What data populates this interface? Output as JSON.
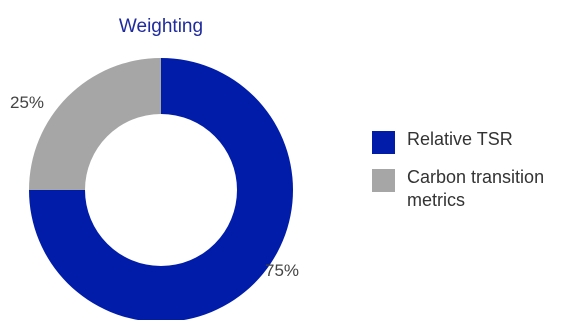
{
  "chart_data": {
    "type": "pie",
    "title": "Weighting",
    "slices": [
      {
        "label": "Relative TSR",
        "value": 75,
        "display": "75%",
        "color": "#001ca8"
      },
      {
        "label": "Carbon transition metrics",
        "value": 25,
        "display": "25%",
        "color": "#a6a6a6"
      }
    ],
    "donut": true,
    "legend_position": "right"
  },
  "legend": {
    "items": [
      {
        "label": "Relative TSR",
        "color": "#001ca8"
      },
      {
        "label": "Carbon transition metrics",
        "color": "#a6a6a6"
      }
    ]
  }
}
